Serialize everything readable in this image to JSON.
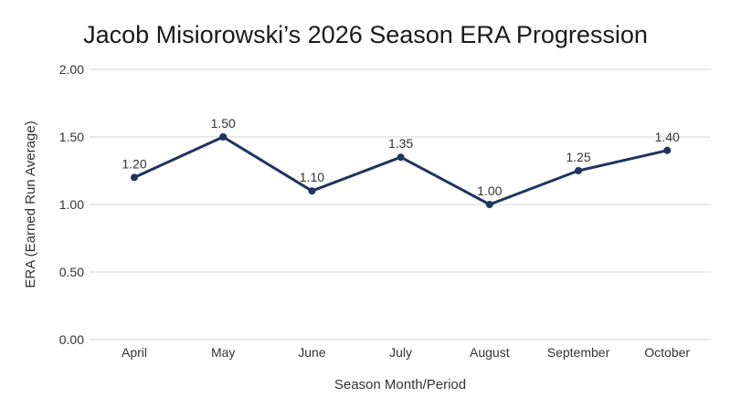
{
  "chart_data": {
    "type": "line",
    "title": "Jacob Misiorowski’s 2026 Season ERA Progression",
    "xlabel": "Season Month/Period",
    "ylabel": "ERA (Earned Run Average)",
    "categories": [
      "April",
      "May",
      "June",
      "July",
      "August",
      "September",
      "October"
    ],
    "series": [
      {
        "values": [
          1.2,
          1.5,
          1.1,
          1.35,
          1.0,
          1.25,
          1.4
        ],
        "labels": [
          "1.20",
          "1.50",
          "1.10",
          "1.35",
          "1.00",
          "1.25",
          "1.40"
        ]
      }
    ],
    "ylim": [
      0,
      2
    ],
    "yticks": [
      0,
      0.5,
      1,
      1.5,
      2
    ],
    "ytick_labels": [
      "0.00",
      "0.50",
      "1.00",
      "1.50",
      "2.00"
    ],
    "grid": true,
    "legend": "none",
    "colors": {
      "line": "#1f3461",
      "grid": "#d4d4d4"
    }
  }
}
